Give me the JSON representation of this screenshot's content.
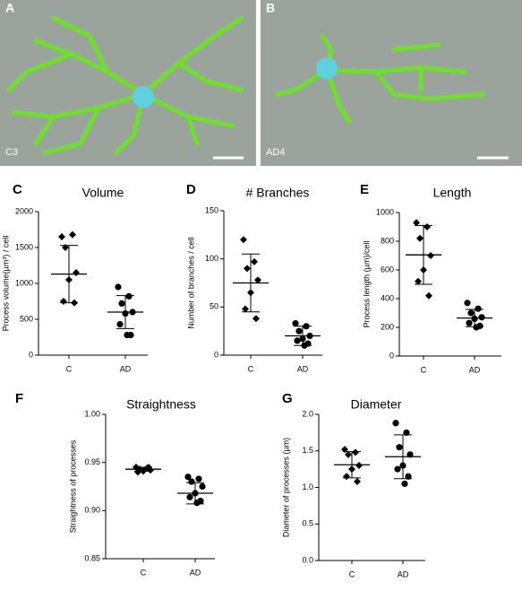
{
  "image_panels": [
    {
      "label": "A",
      "caption": "C3"
    },
    {
      "label": "B",
      "caption": "AD4"
    }
  ],
  "chart_data": [
    {
      "type": "dot",
      "label": "C",
      "title": "Volume",
      "y_label": "Process volume(µm³) / cell",
      "categories": [
        "C",
        "AD"
      ],
      "markers": [
        "diamond",
        "circle"
      ],
      "color": "#000000",
      "groups": [
        {
          "values": [
            1650,
            1680,
            1500,
            1150,
            1050,
            750,
            730
          ],
          "mean": 1130,
          "sd": 400
        },
        {
          "values": [
            950,
            820,
            720,
            600,
            580,
            430,
            280,
            280
          ],
          "mean": 600,
          "sd": 230
        }
      ],
      "ylim": [
        0,
        2000
      ],
      "yticks": [
        0,
        500,
        1000,
        1500,
        2000
      ]
    },
    {
      "type": "dot",
      "label": "D",
      "title": "# Branches",
      "y_label": "Number of branches / cell",
      "categories": [
        "C",
        "AD"
      ],
      "markers": [
        "diamond",
        "circle"
      ],
      "color": "#000000",
      "groups": [
        {
          "values": [
            120,
            97,
            90,
            78,
            65,
            48,
            38
          ],
          "mean": 75,
          "sd": 30
        },
        {
          "values": [
            33,
            30,
            25,
            20,
            17,
            15,
            12,
            10
          ],
          "mean": 20,
          "sd": 10
        }
      ],
      "ylim": [
        0,
        150
      ],
      "yticks": [
        0,
        50,
        100,
        150
      ]
    },
    {
      "type": "dot",
      "label": "E",
      "title": "Length",
      "y_label": "Process length (µm)/cell",
      "categories": [
        "C",
        "AD"
      ],
      "markers": [
        "diamond",
        "circle"
      ],
      "color": "#000000",
      "groups": [
        {
          "values": [
            930,
            900,
            820,
            700,
            600,
            520,
            420
          ],
          "mean": 705,
          "sd": 205
        },
        {
          "values": [
            370,
            330,
            300,
            270,
            260,
            230,
            210,
            200
          ],
          "mean": 265,
          "sd": 60
        }
      ],
      "ylim": [
        0,
        1000
      ],
      "yticks": [
        0,
        200,
        400,
        600,
        800,
        1000
      ]
    },
    {
      "type": "dot",
      "label": "F",
      "title": "Straightness",
      "y_label": "Straightness of processes",
      "categories": [
        "C",
        "AD"
      ],
      "markers": [
        "diamond",
        "circle"
      ],
      "color": "#000000",
      "groups": [
        {
          "values": [
            0.945,
            0.944,
            0.943,
            0.942,
            0.941,
            0.94,
            0.945
          ],
          "mean": 0.943,
          "sd": 0.002
        },
        {
          "values": [
            0.935,
            0.933,
            0.93,
            0.925,
            0.918,
            0.914,
            0.91,
            0.908
          ],
          "mean": 0.918,
          "sd": 0.011
        }
      ],
      "ylim": [
        0.85,
        1.0
      ],
      "yticks": [
        {
          "value": 0.85,
          "label": "0.85"
        },
        {
          "value": 0.9,
          "label": "0.90"
        },
        {
          "value": 0.95,
          "label": "0.95"
        },
        {
          "value": 1.0,
          "label": "1.00"
        }
      ]
    },
    {
      "type": "dot",
      "label": "G",
      "title": "Diameter",
      "y_label": "Diameter of processes (µm)",
      "categories": [
        "C",
        "AD"
      ],
      "markers": [
        "diamond",
        "circle"
      ],
      "color": "#000000",
      "groups": [
        {
          "values": [
            1.52,
            1.48,
            1.45,
            1.3,
            1.25,
            1.15,
            1.08
          ],
          "mean": 1.31,
          "sd": 0.18
        },
        {
          "values": [
            1.88,
            1.75,
            1.55,
            1.45,
            1.3,
            1.25,
            1.15,
            1.05
          ],
          "mean": 1.42,
          "sd": 0.3
        }
      ],
      "ylim": [
        0,
        2.0
      ],
      "yticks": [
        {
          "value": 0,
          "label": "0.0"
        },
        {
          "value": 0.5,
          "label": "0.5"
        },
        {
          "value": 1.0,
          "label": "1.0"
        },
        {
          "value": 1.5,
          "label": "1.5"
        },
        {
          "value": 2.0,
          "label": "2.0"
        }
      ]
    }
  ]
}
